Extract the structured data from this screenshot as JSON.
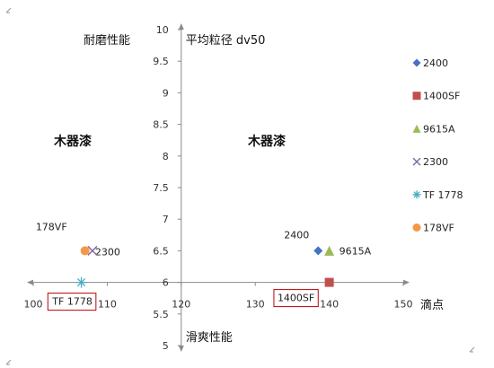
{
  "chart_data": {
    "type": "scatter",
    "x_axis": {
      "label": "滴点",
      "ticks": [
        "100",
        "110",
        "120",
        "130",
        "140",
        "150"
      ],
      "range": [
        100,
        150
      ]
    },
    "y_axis": {
      "label_top": "平均粒径 dv50",
      "label_bottom": "滑爽性能",
      "ticks": [
        "5",
        "5.5",
        "6",
        "6.5",
        "7",
        "7.5",
        "8",
        "8.5",
        "9",
        "9.5",
        "10"
      ],
      "range": [
        5,
        10
      ],
      "cross_at": 6
    },
    "top_left_label": "耐磨性能",
    "quadrant_labels": [
      "木器漆",
      "木器漆"
    ],
    "series": [
      {
        "name": "2400",
        "marker": "diamond",
        "color": "#4472C4",
        "points": [
          {
            "x": 138.5,
            "y": 6.5
          }
        ]
      },
      {
        "name": "1400SF",
        "marker": "square",
        "color": "#C0504D",
        "points": [
          {
            "x": 140.0,
            "y": 6.0
          }
        ]
      },
      {
        "name": "9615A",
        "marker": "triangle",
        "color": "#9BBB59",
        "points": [
          {
            "x": 140.0,
            "y": 6.5
          }
        ]
      },
      {
        "name": "2300",
        "marker": "x",
        "color": "#8064A2",
        "points": [
          {
            "x": 108.0,
            "y": 6.5
          }
        ]
      },
      {
        "name": "TF 1778",
        "marker": "star",
        "color": "#4BACC6",
        "points": [
          {
            "x": 106.5,
            "y": 6.0
          }
        ]
      },
      {
        "name": "178VF",
        "marker": "circle",
        "color": "#F79646",
        "points": [
          {
            "x": 107.0,
            "y": 6.5
          }
        ]
      }
    ],
    "annotations": [
      {
        "text": "178VF",
        "boxed": false
      },
      {
        "text": "2300",
        "boxed": false
      },
      {
        "text": "2400",
        "boxed": false
      },
      {
        "text": "9615A",
        "boxed": false
      },
      {
        "text": "TF 1778",
        "boxed": true
      },
      {
        "text": "1400SF",
        "boxed": true
      }
    ]
  }
}
